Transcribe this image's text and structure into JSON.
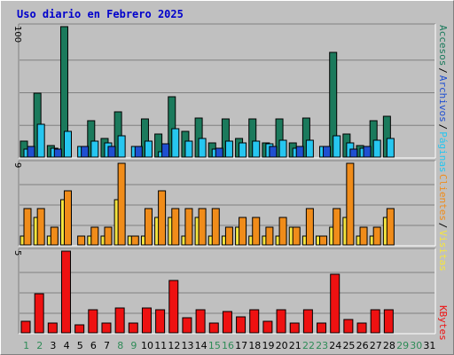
{
  "title": "Uso diario en Febrero 2025",
  "colors": {
    "title": "#0000cc",
    "accesos": "#1b7a5c",
    "paginas": "#26c6f0",
    "archivos": "#1f4fd1",
    "visitas": "#f5e53f",
    "clientes": "#f08c1a",
    "kbytes": "#ee1111",
    "weekend_label": "#2e8b57",
    "weekday_label": "#000000",
    "plot_bg": "#c0c0c0",
    "grid": "#808080"
  },
  "chart_data": [
    {
      "type": "bar",
      "name": "traffic",
      "ymax_label": "100",
      "legend": [
        "Accesos",
        "Páginas",
        "Archivos"
      ],
      "categories": [
        "1",
        "2",
        "3",
        "4",
        "5",
        "6",
        "7",
        "8",
        "9",
        "10",
        "11",
        "12",
        "13",
        "14",
        "15",
        "16",
        "17",
        "18",
        "19",
        "20",
        "21",
        "22",
        "23",
        "24",
        "25",
        "26",
        "27",
        "28",
        "29",
        "30",
        "31"
      ],
      "series": [
        {
          "name": "Accesos",
          "values": [
            12,
            49,
            9,
            100,
            0,
            28,
            14,
            35,
            0,
            29,
            18,
            46,
            20,
            30,
            11,
            29,
            14,
            29,
            11,
            29,
            11,
            30,
            0,
            80,
            18,
            9,
            28,
            31,
            0,
            0,
            0
          ]
        },
        {
          "name": "Páginas",
          "values": [
            6,
            25,
            7,
            20,
            8,
            12,
            11,
            16,
            8,
            12,
            4,
            22,
            12,
            14,
            6,
            12,
            11,
            12,
            10,
            13,
            7,
            13,
            8,
            16,
            11,
            7,
            13,
            14,
            0,
            0,
            0
          ]
        },
        {
          "name": "Archivos",
          "values": [
            8,
            0,
            6,
            0,
            8,
            0,
            8,
            0,
            8,
            0,
            10,
            0,
            0,
            0,
            7,
            0,
            0,
            0,
            8,
            0,
            8,
            0,
            8,
            0,
            6,
            8,
            0,
            0,
            0,
            0,
            0
          ]
        }
      ]
    },
    {
      "type": "bar",
      "name": "visitors",
      "ymax_label": "9",
      "legend": [
        "Visitas",
        "Clientes"
      ],
      "categories": [
        "1",
        "2",
        "3",
        "4",
        "5",
        "6",
        "7",
        "8",
        "9",
        "10",
        "11",
        "12",
        "13",
        "14",
        "15",
        "16",
        "17",
        "18",
        "19",
        "20",
        "21",
        "22",
        "23",
        "24",
        "25",
        "26",
        "27",
        "28",
        "29",
        "30",
        "31"
      ],
      "series": [
        {
          "name": "Visitas",
          "values": [
            1,
            3,
            1,
            5,
            0,
            1,
            1,
            5,
            1,
            1,
            3,
            3,
            1,
            3,
            1,
            1,
            2,
            1,
            1,
            1,
            2,
            1,
            1,
            2,
            3,
            1,
            1,
            3,
            0,
            0,
            0
          ]
        },
        {
          "name": "Clientes",
          "values": [
            4,
            4,
            2,
            6,
            1,
            2,
            2,
            9,
            1,
            4,
            6,
            4,
            4,
            4,
            4,
            2,
            3,
            3,
            2,
            3,
            2,
            4,
            1,
            4,
            9,
            2,
            2,
            4,
            0,
            0,
            0
          ]
        }
      ]
    },
    {
      "type": "bar",
      "name": "kbytes",
      "ymax_label": "5",
      "legend": [
        "KBytes"
      ],
      "categories": [
        "1",
        "2",
        "3",
        "4",
        "5",
        "6",
        "7",
        "8",
        "9",
        "10",
        "11",
        "12",
        "13",
        "14",
        "15",
        "16",
        "17",
        "18",
        "19",
        "20",
        "21",
        "22",
        "23",
        "24",
        "25",
        "26",
        "27",
        "28",
        "29",
        "30",
        "31"
      ],
      "series": [
        {
          "name": "KBytes",
          "values": [
            0.7,
            2.4,
            0.6,
            5,
            0.5,
            1.4,
            0.6,
            1.5,
            0.6,
            1.5,
            1.4,
            3.2,
            0.9,
            1.4,
            0.6,
            1.3,
            1.0,
            1.4,
            0.7,
            1.4,
            0.6,
            1.4,
            0.6,
            3.6,
            0.8,
            0.6,
            1.4,
            1.4,
            0,
            0,
            0
          ]
        }
      ]
    }
  ],
  "weekend_days": [
    1,
    2,
    8,
    9,
    15,
    16,
    22,
    23,
    29,
    30
  ]
}
